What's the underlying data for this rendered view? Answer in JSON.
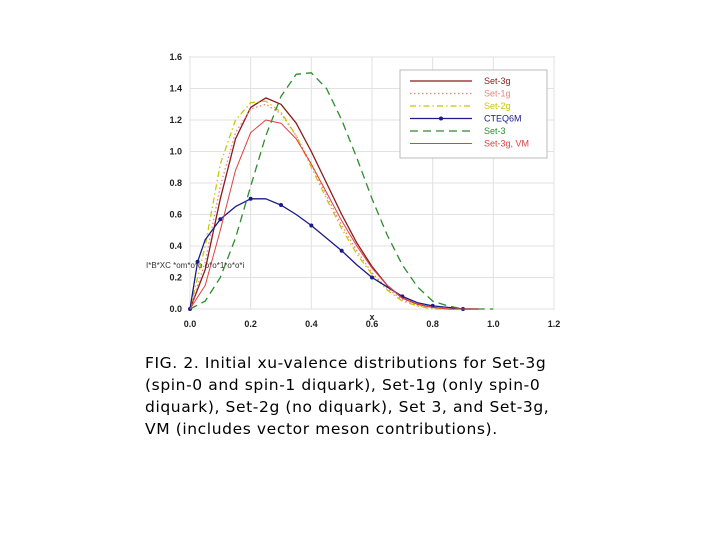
{
  "chart_data": {
    "type": "line",
    "title": "",
    "xlabel": "x",
    "ylabel": "",
    "ylabel_garbled": "I*B*XC *om*o*o o*o*1*o*o*i",
    "xlim": [
      0.0,
      1.2
    ],
    "ylim": [
      0.0,
      1.6
    ],
    "x_ticks": [
      "0.0",
      "0.2",
      "0.4",
      "0.6",
      "0.8",
      "1.0",
      "1.2"
    ],
    "y_ticks": [
      "0.0",
      "0.2",
      "0.4",
      "0.6",
      "0.8",
      "1.0",
      "1.2",
      "1.4",
      "1.6"
    ],
    "legend_position": "top-right",
    "series": [
      {
        "name": "Set-3g",
        "color": "#8b1a1a",
        "style": "solid",
        "x": [
          0.0,
          0.05,
          0.1,
          0.15,
          0.2,
          0.25,
          0.3,
          0.35,
          0.4,
          0.45,
          0.5,
          0.55,
          0.6,
          0.65,
          0.7,
          0.75,
          0.8,
          0.85,
          0.9,
          0.95
        ],
        "y": [
          0.0,
          0.25,
          0.7,
          1.08,
          1.28,
          1.34,
          1.3,
          1.18,
          1.0,
          0.8,
          0.6,
          0.42,
          0.27,
          0.15,
          0.07,
          0.03,
          0.01,
          0.0,
          0.0,
          0.0
        ]
      },
      {
        "name": "Set-1g",
        "color": "#f08080",
        "style": "dotted",
        "x": [
          0.0,
          0.05,
          0.1,
          0.15,
          0.2,
          0.25,
          0.3,
          0.35,
          0.4,
          0.45,
          0.5,
          0.55,
          0.6,
          0.65,
          0.7,
          0.75,
          0.8,
          0.85,
          0.9,
          0.95
        ],
        "y": [
          0.0,
          0.3,
          0.78,
          1.12,
          1.27,
          1.3,
          1.24,
          1.1,
          0.92,
          0.72,
          0.53,
          0.37,
          0.23,
          0.13,
          0.06,
          0.02,
          0.01,
          0.0,
          0.0,
          0.0
        ]
      },
      {
        "name": "Set-2g",
        "color": "#c8c800",
        "style": "dashdot",
        "x": [
          0.0,
          0.05,
          0.1,
          0.15,
          0.2,
          0.25,
          0.3,
          0.35,
          0.4,
          0.45,
          0.5,
          0.55,
          0.6,
          0.65,
          0.7,
          0.75,
          0.8,
          0.85,
          0.9,
          0.95
        ],
        "y": [
          0.0,
          0.4,
          0.92,
          1.2,
          1.31,
          1.32,
          1.25,
          1.1,
          0.9,
          0.7,
          0.51,
          0.35,
          0.22,
          0.12,
          0.05,
          0.02,
          0.0,
          0.0,
          0.0,
          0.0
        ]
      },
      {
        "name": "CTEQ6M",
        "color": "#1a1a8c",
        "style": "solid-markers",
        "x": [
          0.0,
          0.025,
          0.05,
          0.1,
          0.15,
          0.2,
          0.25,
          0.3,
          0.35,
          0.4,
          0.45,
          0.5,
          0.55,
          0.6,
          0.65,
          0.7,
          0.75,
          0.8,
          0.85,
          0.9,
          0.95
        ],
        "y": [
          0.0,
          0.3,
          0.44,
          0.57,
          0.65,
          0.7,
          0.7,
          0.66,
          0.6,
          0.53,
          0.45,
          0.37,
          0.28,
          0.2,
          0.14,
          0.08,
          0.04,
          0.02,
          0.01,
          0.0,
          0.0
        ]
      },
      {
        "name": "Set-3",
        "color": "#2e8b2e",
        "style": "dashed",
        "x": [
          0.0,
          0.05,
          0.1,
          0.15,
          0.2,
          0.25,
          0.3,
          0.35,
          0.4,
          0.45,
          0.5,
          0.55,
          0.6,
          0.65,
          0.7,
          0.75,
          0.8,
          0.85,
          0.9,
          0.95,
          1.0
        ],
        "y": [
          0.0,
          0.05,
          0.2,
          0.45,
          0.78,
          1.1,
          1.35,
          1.49,
          1.5,
          1.4,
          1.2,
          0.96,
          0.7,
          0.47,
          0.28,
          0.14,
          0.05,
          0.02,
          0.0,
          0.0,
          0.0
        ]
      },
      {
        "name": "Set-3g, VM",
        "color": "#e04040",
        "style": "solid-thin",
        "x": [
          0.0,
          0.05,
          0.1,
          0.15,
          0.2,
          0.25,
          0.3,
          0.35,
          0.4,
          0.45,
          0.5,
          0.55,
          0.6,
          0.65,
          0.7,
          0.75,
          0.8,
          0.85,
          0.9,
          0.95
        ],
        "y": [
          0.0,
          0.15,
          0.5,
          0.88,
          1.12,
          1.2,
          1.18,
          1.08,
          0.92,
          0.74,
          0.56,
          0.4,
          0.26,
          0.15,
          0.07,
          0.03,
          0.01,
          0.0,
          0.0,
          0.0
        ]
      }
    ]
  },
  "caption": {
    "line1": "FIG. 2. Initial xu-valence distributions for Set-3g",
    "line2": "(spin-0 and spin-1 diquark), Set-1g (only spin-0",
    "line3": "diquark), Set-2g (no diquark), Set 3, and Set-3g,",
    "line4": "VM (includes vector meson contributions)."
  }
}
